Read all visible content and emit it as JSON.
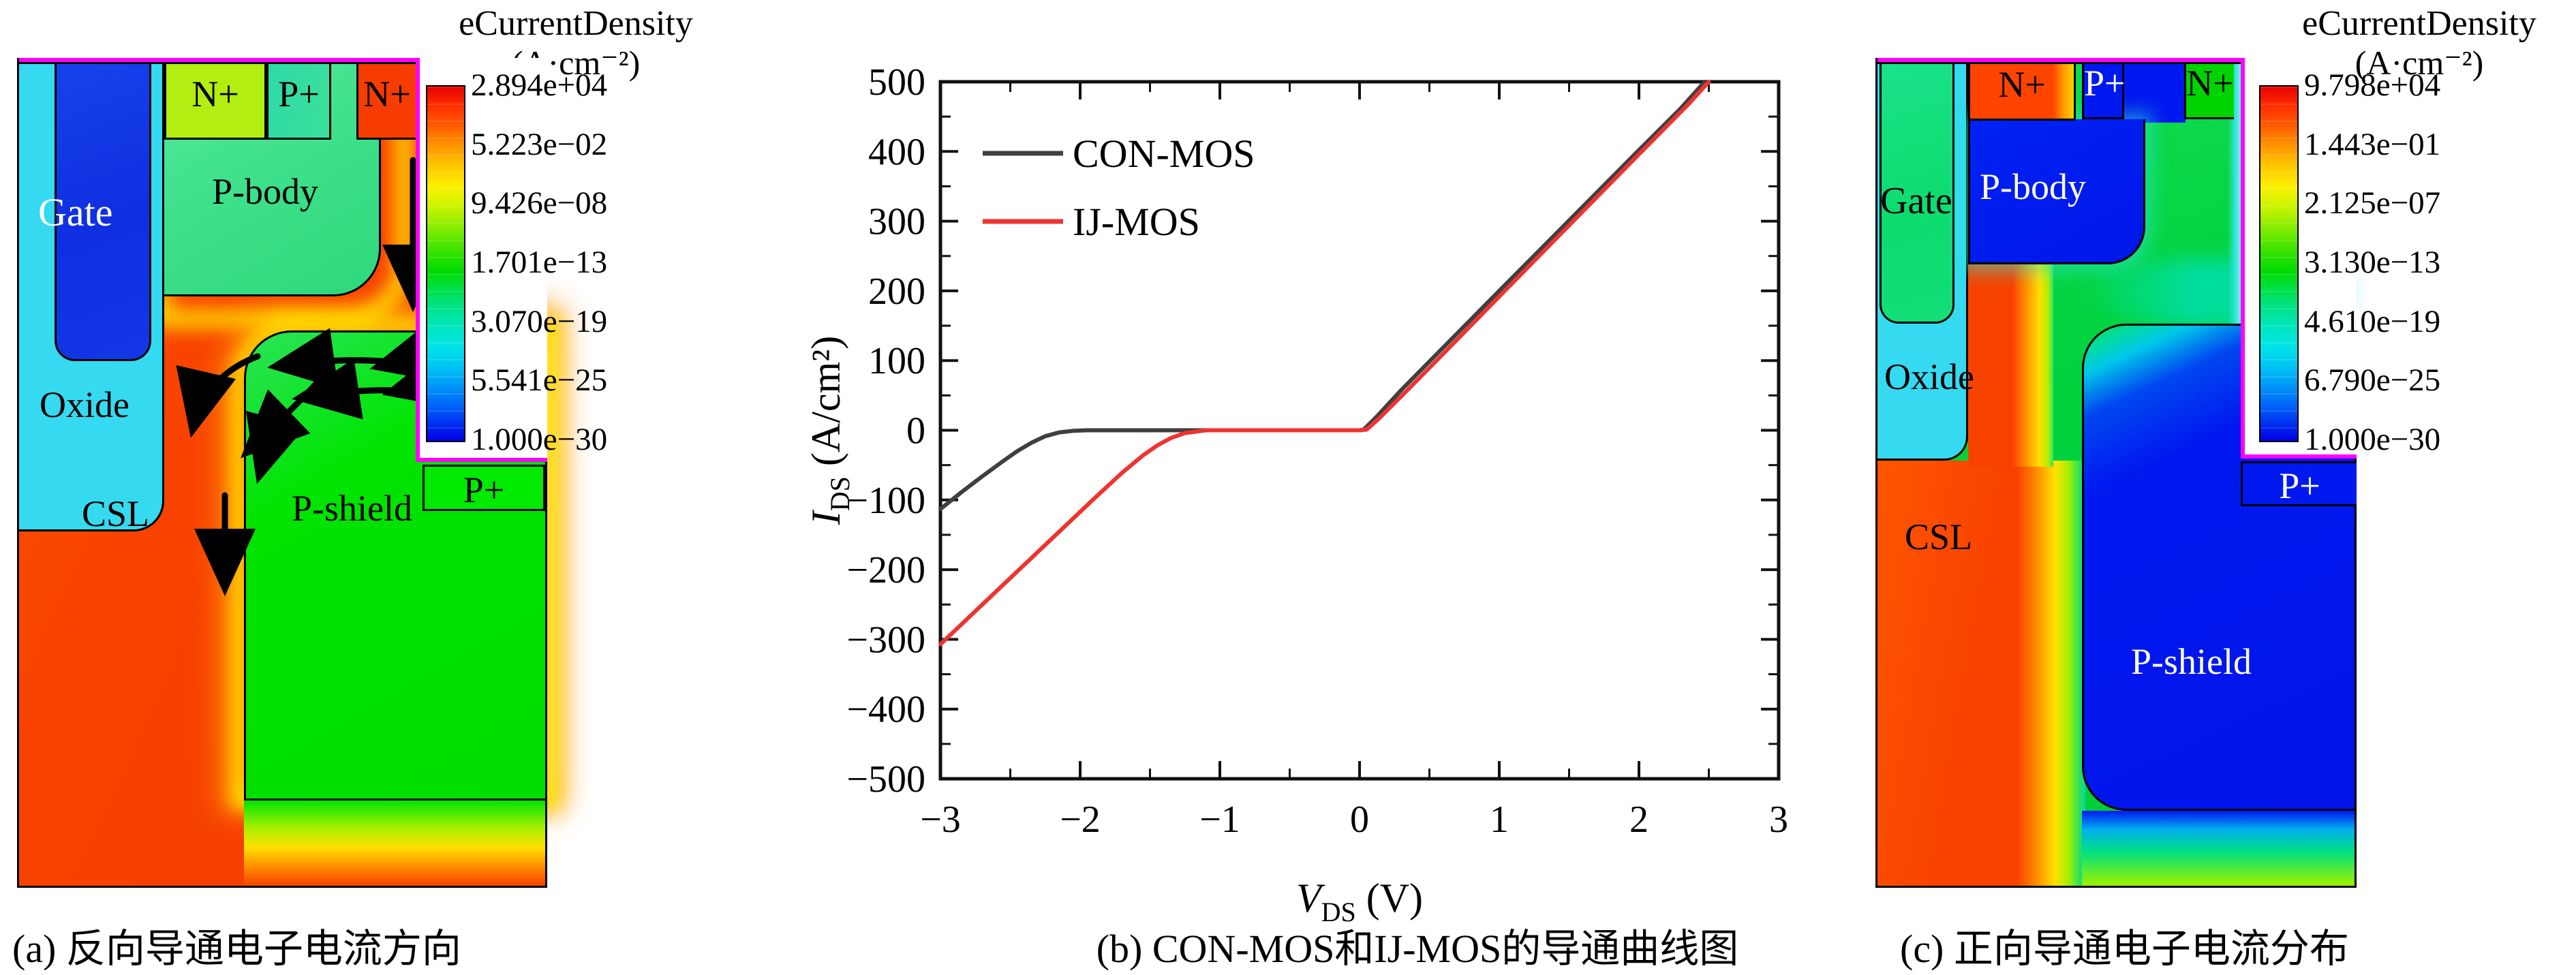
{
  "figure": {
    "captions": {
      "a": "(a) 反向导通电子电流方向",
      "b": "(b) CON-MOS和IJ-MOS的导通曲线图",
      "c": "(c) 正向导通电子电流分布"
    }
  },
  "panel_a": {
    "legend": {
      "title": "eCurrentDensity",
      "unit": "(A·cm⁻²)",
      "values": [
        "2.894e+04",
        "5.223e−02",
        "9.426e−08",
        "1.701e−13",
        "3.070e−19",
        "5.541e−25",
        "1.000e−30"
      ]
    },
    "labels": {
      "gate": "Gate",
      "oxide": "Oxide",
      "csl": "CSL",
      "p_body": "P-body",
      "p_shield": "P-shield",
      "n_plus_left": "N+",
      "p_plus_top": "P+",
      "n_plus_right": "N+",
      "p_plus_side": "P+"
    }
  },
  "panel_c": {
    "legend": {
      "title": "eCurrentDensity",
      "unit": "(A·cm⁻²)",
      "values": [
        "9.798e+04",
        "1.443e−01",
        "2.125e−07",
        "3.130e−13",
        "4.610e−19",
        "6.790e−25",
        "1.000e−30"
      ]
    },
    "labels": {
      "gate": "Gate",
      "oxide": "Oxide",
      "csl": "CSL",
      "p_body": "P-body",
      "p_shield": "P-shield",
      "n_plus_left": "N+",
      "p_plus_top": "P+",
      "n_plus_right": "N+",
      "p_plus_side": "P+"
    }
  },
  "chart_data": {
    "type": "line",
    "title": "",
    "xlabel": "V_DS (V)",
    "ylabel": "I_DS (A/cm²)",
    "xlabel_parts": {
      "var": "V",
      "sub": "DS",
      "unit": " (V)"
    },
    "ylabel_parts": {
      "var": "I",
      "sub": "DS",
      "unit": " (A/cm²)"
    },
    "xlim": [
      -3,
      3
    ],
    "ylim": [
      -500,
      500
    ],
    "x_major_step": 1,
    "x_minor_step": 0.5,
    "y_major_step": 100,
    "y_minor_step": 50,
    "grid": false,
    "legend_position": "top-left",
    "series": [
      {
        "name": "CON-MOS",
        "color": "#3f3f3f",
        "points": [
          [
            -3,
            -113
          ],
          [
            -2.85,
            -89
          ],
          [
            -2.7,
            -66
          ],
          [
            -2.55,
            -44
          ],
          [
            -2.45,
            -30
          ],
          [
            -2.35,
            -18
          ],
          [
            -2.25,
            -8.5
          ],
          [
            -2.15,
            -3
          ],
          [
            -2.05,
            -0.8
          ],
          [
            -1.95,
            0
          ],
          [
            -1,
            0
          ],
          [
            0,
            0
          ],
          [
            0.03,
            1
          ],
          [
            0.12,
            19
          ],
          [
            0.3,
            58
          ],
          [
            0.6,
            119
          ],
          [
            1,
            200
          ],
          [
            1.5,
            301
          ],
          [
            2,
            402
          ],
          [
            2.3,
            462
          ],
          [
            2.47,
            500
          ]
        ]
      },
      {
        "name": "IJ-MOS",
        "color": "#ee3430",
        "points": [
          [
            -3,
            -307
          ],
          [
            -2.6,
            -231
          ],
          [
            -2.2,
            -155
          ],
          [
            -1.9,
            -98
          ],
          [
            -1.7,
            -61
          ],
          [
            -1.55,
            -36
          ],
          [
            -1.45,
            -22
          ],
          [
            -1.35,
            -11
          ],
          [
            -1.25,
            -4
          ],
          [
            -1.1,
            0
          ],
          [
            -0.5,
            0
          ],
          [
            0,
            0
          ],
          [
            0.05,
            1
          ],
          [
            0.14,
            17
          ],
          [
            0.32,
            53
          ],
          [
            0.6,
            110
          ],
          [
            1,
            192
          ],
          [
            1.5,
            294
          ],
          [
            2,
            396
          ],
          [
            2.35,
            467
          ],
          [
            2.5,
            500
          ]
        ]
      }
    ]
  },
  "colors": {
    "magenta_border": "#ff00ff",
    "csl_red": "#f84300",
    "oxide_cyan": "#35daf0",
    "gate_blue": "#1438ea",
    "gate_green": "#12df78",
    "p_body_teal": "#3fe18c",
    "p_shield_green": "#00e400",
    "deep_blue": "#0018f0",
    "n_plus_yellow_green": "#b2ee12",
    "n_plus_red": "#f63c00",
    "n_plus_green": "#00d400",
    "p_plus_green": "#00ea00",
    "con_mos_line": "#3f3f3f",
    "ij_mos_line": "#ee3430"
  }
}
